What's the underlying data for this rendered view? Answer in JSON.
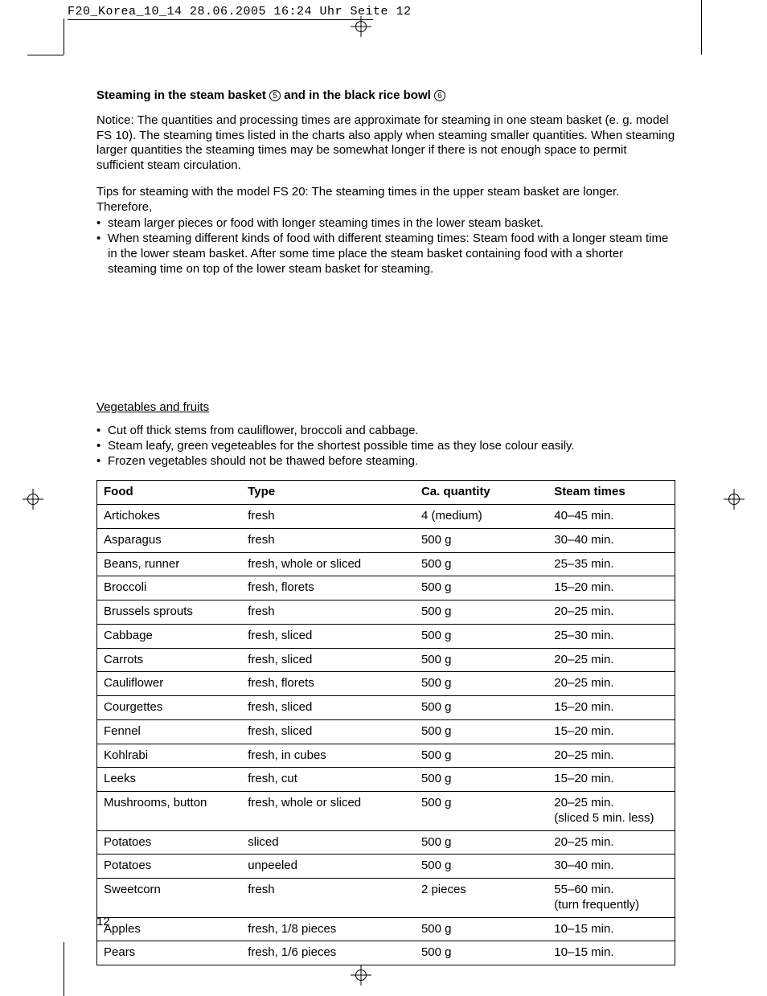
{
  "header_strip": "F20_Korea_10_14  28.06.2005  16:24 Uhr  Seite 12",
  "heading_parts": {
    "a": "Steaming in the steam basket ",
    "num1": "5",
    "b": " and in the black rice bowl ",
    "num2": "6"
  },
  "notice": "Notice: The quantities and processing times are approximate for steaming in one steam basket (e. g. model FS 10). The steaming times listed in the charts also apply when steaming smaller quantities. When steaming larger quantities the steaming times may be somewhat longer if there is not enough space to permit sufficient steam circulation.",
  "tips_intro": "Tips for steaming with the model FS 20: The steaming times in the upper steam basket are longer. Therefore,",
  "tips": [
    "steam larger pieces or food with longer steaming times in the lower steam basket.",
    "When steaming different kinds of food with different steaming times: Steam food with a longer steam time in the lower steam basket. After some time place the steam basket containing food with a shorter steaming time on top of the lower steam basket for steaming."
  ],
  "section_title": "Vegetables and fruits",
  "veg_tips": [
    "Cut off thick stems from cauliflower, broccoli and cabbage.",
    "Steam leafy, green vegeteables for the shortest possible time as they lose colour easily.",
    "Frozen vegetables should not be thawed before steaming."
  ],
  "table": {
    "columns": [
      "Food",
      "Type",
      "Ca. quantity",
      "Steam times"
    ],
    "rows": [
      [
        "Artichokes",
        "fresh",
        "4 (medium)",
        "40–45 min."
      ],
      [
        "Asparagus",
        "fresh",
        "500 g",
        "30–40 min."
      ],
      [
        "Beans, runner",
        "fresh, whole or sliced",
        "500 g",
        "25–35 min."
      ],
      [
        "Broccoli",
        "fresh, florets",
        "500 g",
        "15–20 min."
      ],
      [
        "Brussels sprouts",
        "fresh",
        "500 g",
        "20–25 min."
      ],
      [
        "Cabbage",
        "fresh, sliced",
        "500 g",
        "25–30 min."
      ],
      [
        "Carrots",
        "fresh, sliced",
        "500 g",
        "20–25 min."
      ],
      [
        "Cauliflower",
        "fresh, florets",
        "500 g",
        "20–25 min."
      ],
      [
        "Courgettes",
        "fresh, sliced",
        "500 g",
        "15–20 min."
      ],
      [
        "Fennel",
        "fresh, sliced",
        "500 g",
        "15–20 min."
      ],
      [
        "Kohlrabi",
        "fresh, in cubes",
        "500 g",
        "20–25 min."
      ],
      [
        "Leeks",
        "fresh, cut",
        "500 g",
        "15–20 min."
      ],
      [
        "Mushrooms, button",
        "fresh, whole or sliced",
        "500 g",
        "20–25 min.\n(sliced 5 min. less)"
      ],
      [
        "Potatoes",
        "sliced",
        "500 g",
        "20–25 min."
      ],
      [
        "Potatoes",
        "unpeeled",
        "500 g",
        "30–40 min."
      ],
      [
        "Sweetcorn",
        "fresh",
        "2 pieces",
        "55–60 min.\n(turn frequently)"
      ],
      [
        "Apples",
        "fresh, 1/8 pieces",
        "500 g",
        "10–15 min."
      ],
      [
        "Pears",
        "fresh, 1/6 pieces",
        "500 g",
        "10–15 min."
      ]
    ]
  },
  "page_number": "12"
}
